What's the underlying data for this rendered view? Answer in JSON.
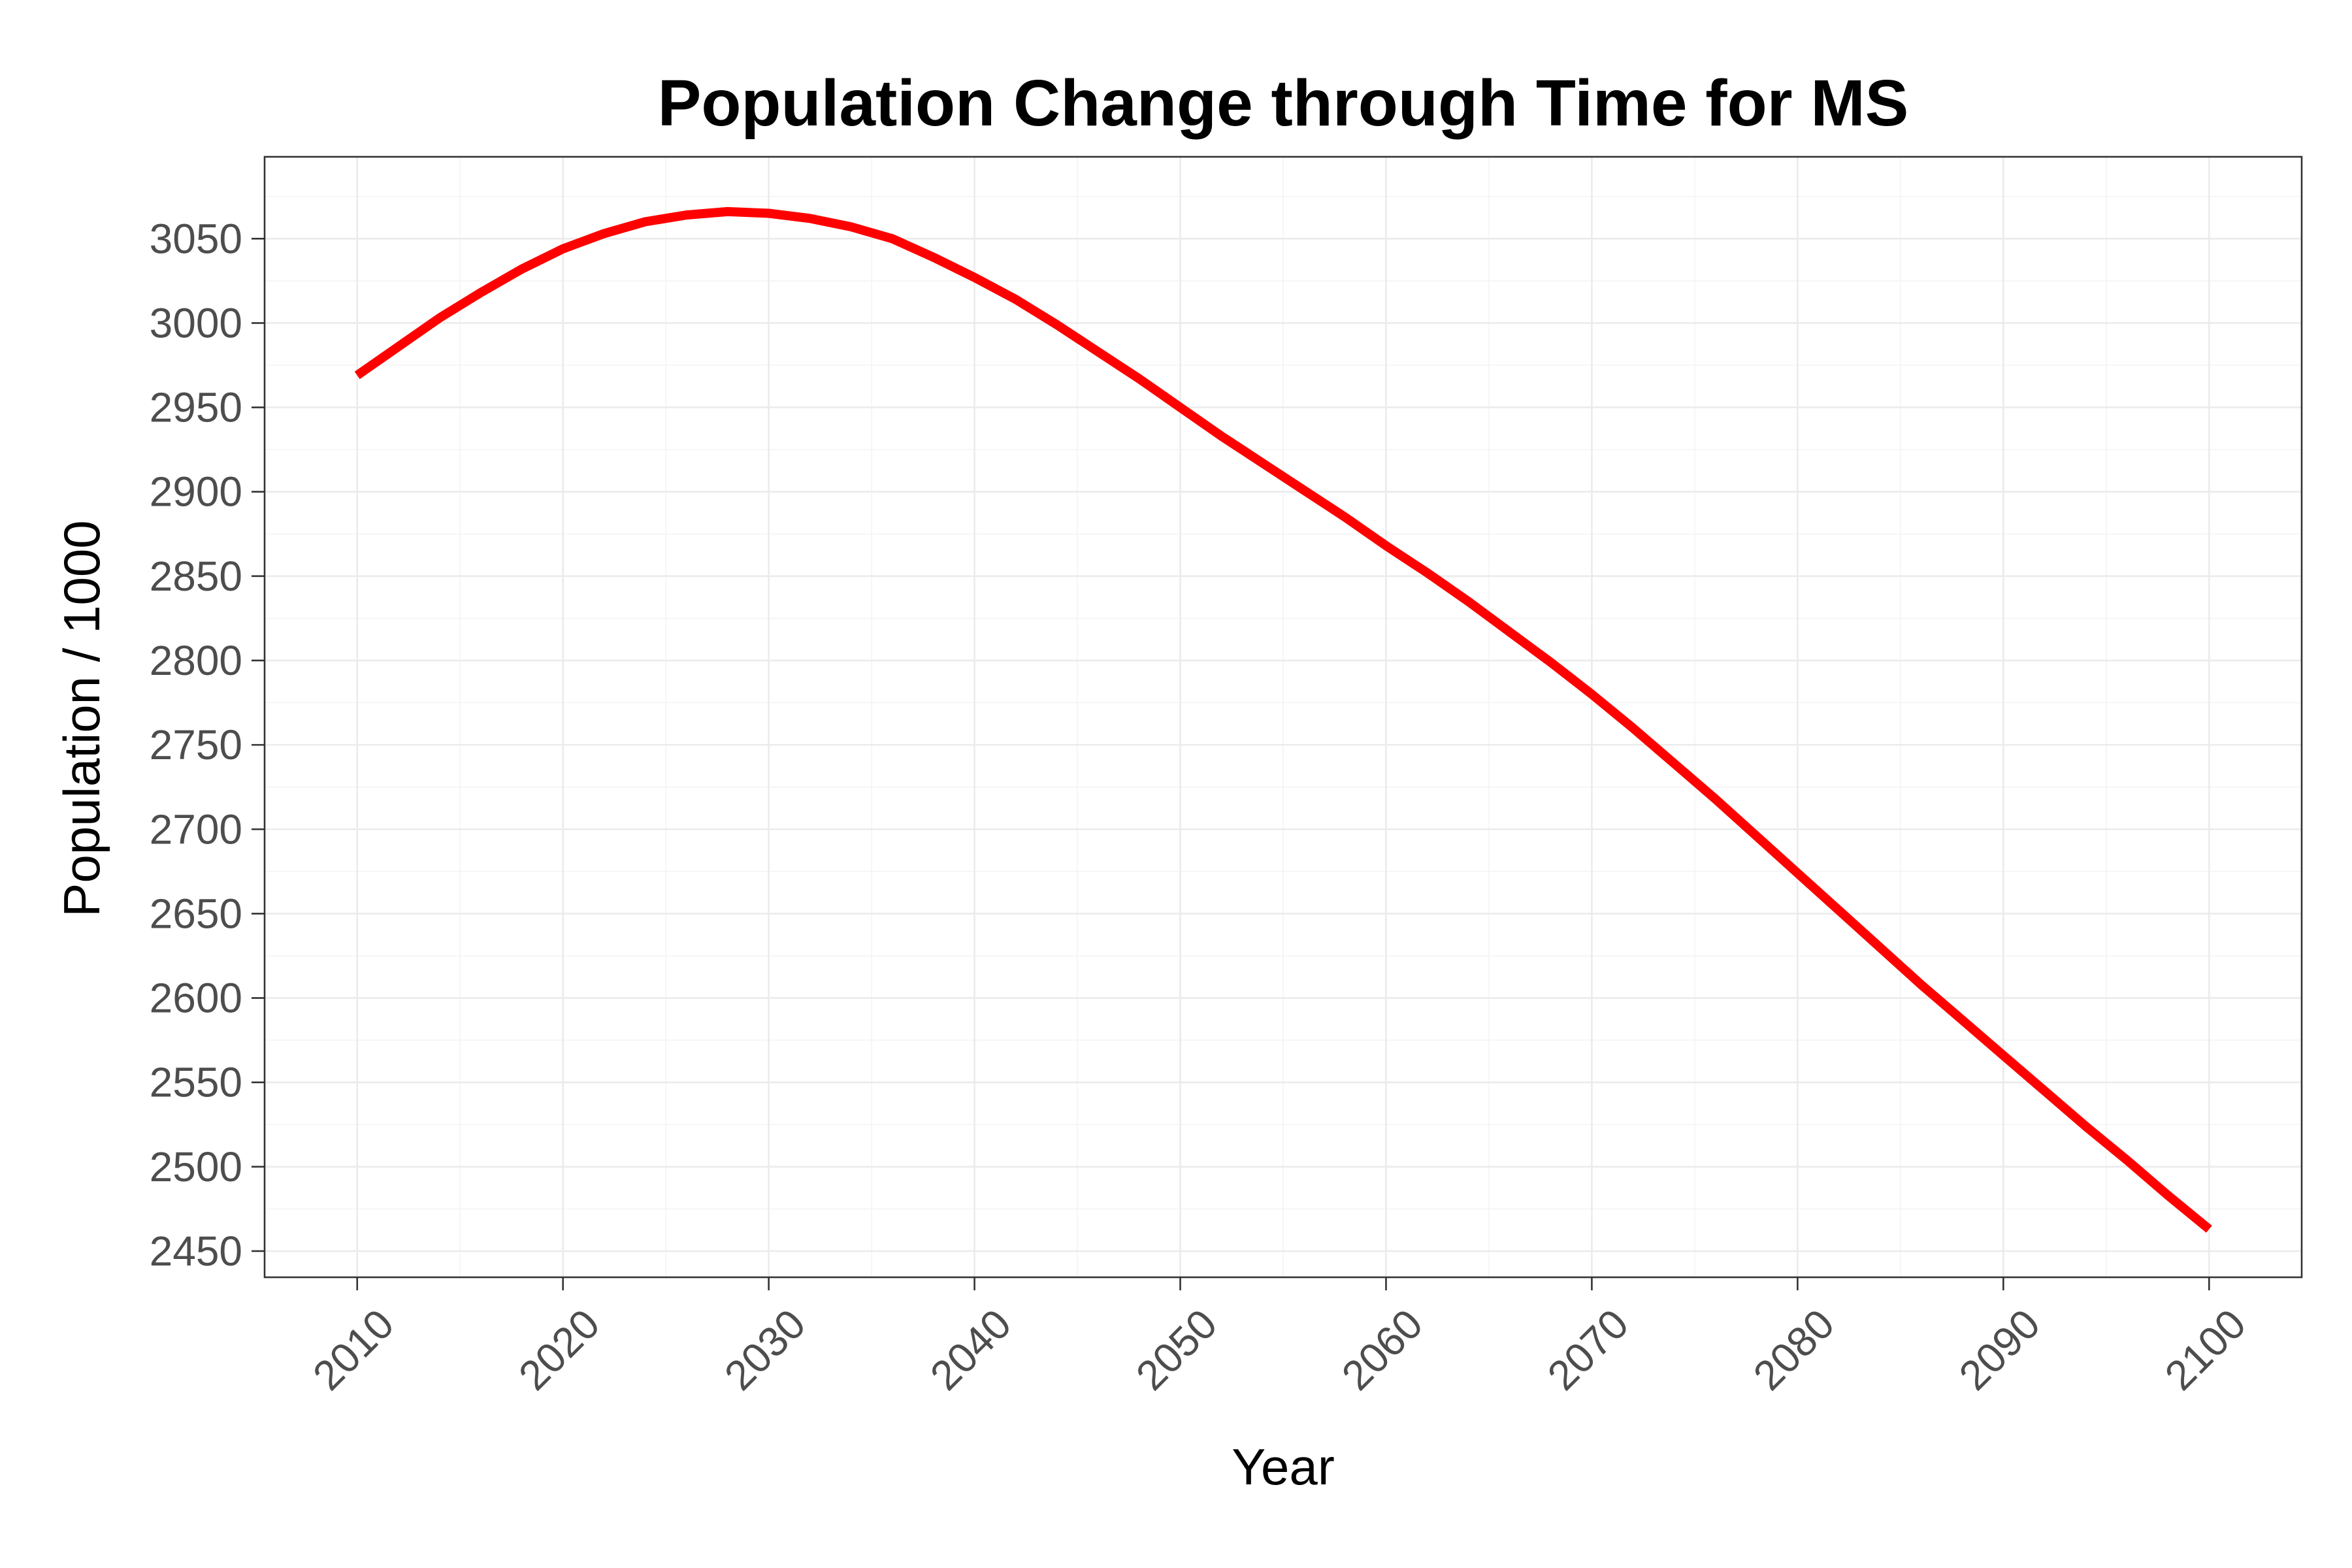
{
  "chart_data": {
    "type": "line",
    "title": "Population Change through Time for MS",
    "xlabel": "Year",
    "ylabel": "Population / 1000",
    "xlim": [
      2005.5,
      2104.5
    ],
    "ylim": [
      2434.5,
      3098.5
    ],
    "x_ticks": [
      2010,
      2020,
      2030,
      2040,
      2050,
      2060,
      2070,
      2080,
      2090,
      2100
    ],
    "y_ticks": [
      2450,
      2500,
      2550,
      2600,
      2650,
      2700,
      2750,
      2800,
      2850,
      2900,
      2950,
      3000,
      3050
    ],
    "x_tick_labels": [
      "2010",
      "2020",
      "2030",
      "2040",
      "2050",
      "2060",
      "2070",
      "2080",
      "2090",
      "2100"
    ],
    "y_tick_labels": [
      "2450",
      "2500",
      "2550",
      "2600",
      "2650",
      "2700",
      "2750",
      "2800",
      "2850",
      "2900",
      "2950",
      "3000",
      "3050"
    ],
    "grid": true,
    "legend": "none",
    "series_color": "#ff0000",
    "series": [
      {
        "x": [
          2010,
          2012,
          2014,
          2016,
          2018,
          2020,
          2022,
          2024,
          2026,
          2028,
          2030,
          2032,
          2034,
          2036,
          2038,
          2040,
          2042,
          2044,
          2046,
          2048,
          2050,
          2052,
          2054,
          2056,
          2058,
          2060,
          2062,
          2064,
          2066,
          2068,
          2070,
          2072,
          2074,
          2076,
          2078,
          2080,
          2082,
          2084,
          2086,
          2088,
          2090,
          2092,
          2094,
          2096,
          2098,
          2100
        ],
        "values": [
          2969,
          2986,
          3003,
          3018,
          3032,
          3044,
          3053,
          3060,
          3064,
          3066,
          3065,
          3062,
          3057,
          3050,
          3039,
          3027,
          3014,
          2999,
          2983,
          2967,
          2950,
          2933,
          2917,
          2901,
          2885,
          2868,
          2852,
          2835,
          2817,
          2799,
          2780,
          2760,
          2739,
          2718,
          2696,
          2674,
          2652,
          2630,
          2608,
          2587,
          2566,
          2545,
          2524,
          2504,
          2483,
          2463
        ]
      }
    ]
  }
}
